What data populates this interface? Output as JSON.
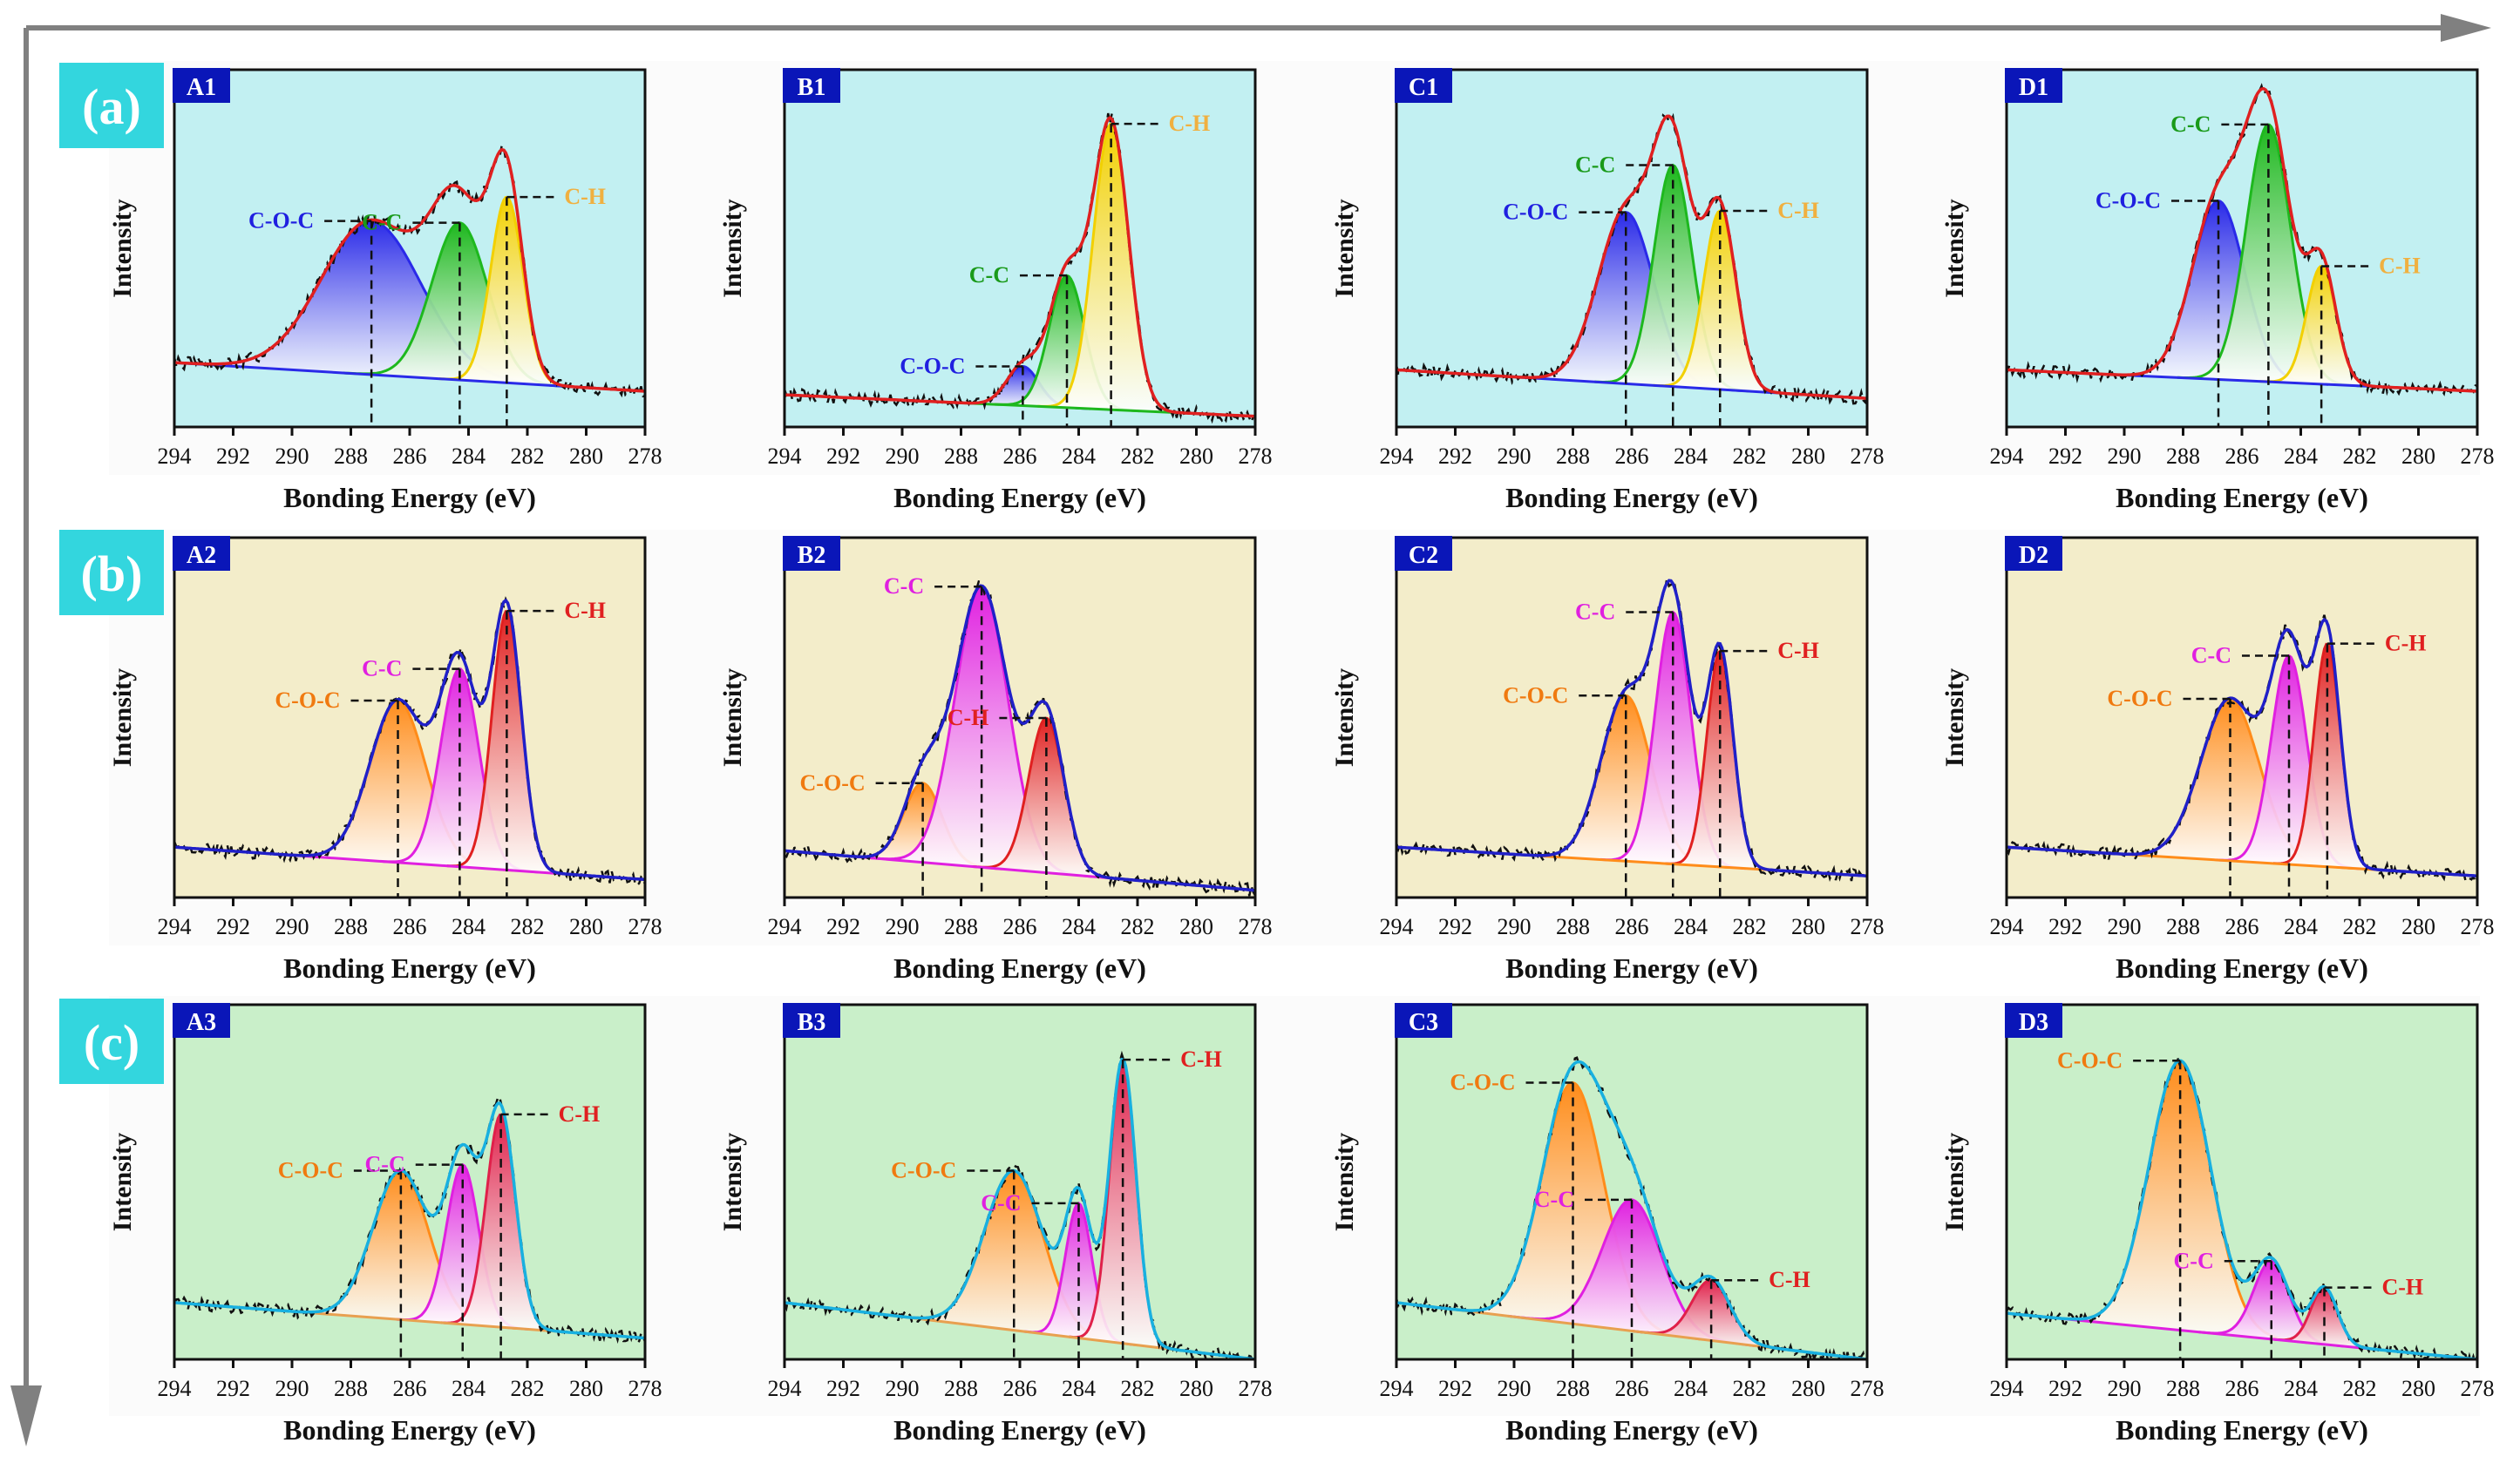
{
  "row_labels": [
    "(a)",
    "(b)",
    "(c)"
  ],
  "axis_text": {
    "xlabel": "Bonding Energy (eV)",
    "ylabel": "Intensity"
  },
  "colors": {
    "row_bg": [
      "#c2f0f2",
      "#f3edca",
      "#c9efc9"
    ],
    "row_label_bg": "#33d6de",
    "panel_label_bg": "#0a16b8",
    "arrow": "#808080"
  },
  "chart_data": [
    {
      "id": "A1",
      "type": "area",
      "xlabel": "Bonding Energy (eV)",
      "ylabel": "Intensity",
      "xlim": [
        294,
        278
      ],
      "x_ticks": [
        294,
        292,
        290,
        288,
        286,
        284,
        282,
        280,
        278
      ],
      "envelope_color": "#e02020",
      "baseline_color": "#2a2ae8",
      "baseline": [
        0.18,
        0.1
      ],
      "peaks": [
        {
          "label": "C-O-C",
          "center": 287.3,
          "height": 0.43,
          "width": 1.7,
          "color": "#2a2ae8",
          "label_color": "#2020e0"
        },
        {
          "label": "C-C",
          "center": 284.3,
          "height": 0.44,
          "width": 0.95,
          "color": "#1eb81e",
          "label_color": "#1a9a1a"
        },
        {
          "label": "C-H",
          "center": 282.7,
          "height": 0.52,
          "width": 0.55,
          "color": "#f2d000",
          "label_color": "#f0b040"
        }
      ]
    },
    {
      "id": "B1",
      "type": "area",
      "xlabel": "Bonding Energy (eV)",
      "ylabel": "Intensity",
      "xlim": [
        294,
        278
      ],
      "x_ticks": [
        294,
        292,
        290,
        288,
        286,
        284,
        282,
        280,
        278
      ],
      "envelope_color": "#e02020",
      "baseline_color": "#1eb81e",
      "baseline": [
        0.09,
        0.03
      ],
      "peaks": [
        {
          "label": "C-O-C",
          "center": 285.9,
          "height": 0.11,
          "width": 0.55,
          "color": "#2a2ae8",
          "label_color": "#2020e0"
        },
        {
          "label": "C-C",
          "center": 284.4,
          "height": 0.37,
          "width": 0.6,
          "color": "#1eb81e",
          "label_color": "#1a9a1a"
        },
        {
          "label": "C-H",
          "center": 282.9,
          "height": 0.8,
          "width": 0.6,
          "color": "#f2d000",
          "label_color": "#f0b040"
        }
      ]
    },
    {
      "id": "C1",
      "type": "area",
      "xlabel": "Bonding Energy (eV)",
      "ylabel": "Intensity",
      "xlim": [
        294,
        278
      ],
      "x_ticks": [
        294,
        292,
        290,
        288,
        286,
        284,
        282,
        280,
        278
      ],
      "envelope_color": "#e02020",
      "baseline_color": "#2a2ae8",
      "baseline": [
        0.16,
        0.08
      ],
      "peaks": [
        {
          "label": "C-O-C",
          "center": 286.2,
          "height": 0.48,
          "width": 0.95,
          "color": "#2a2ae8",
          "label_color": "#2020e0"
        },
        {
          "label": "C-C",
          "center": 284.6,
          "height": 0.62,
          "width": 0.65,
          "color": "#1eb81e",
          "label_color": "#1a9a1a"
        },
        {
          "label": "C-H",
          "center": 283.0,
          "height": 0.5,
          "width": 0.55,
          "color": "#f2d000",
          "label_color": "#f0b040"
        }
      ]
    },
    {
      "id": "D1",
      "type": "area",
      "xlabel": "Bonding Energy (eV)",
      "ylabel": "Intensity",
      "xlim": [
        294,
        278
      ],
      "x_ticks": [
        294,
        292,
        290,
        288,
        286,
        284,
        282,
        280,
        278
      ],
      "envelope_color": "#e02020",
      "baseline_color": "#2a2ae8",
      "baseline": [
        0.16,
        0.1
      ],
      "peaks": [
        {
          "label": "C-O-C",
          "center": 286.8,
          "height": 0.5,
          "width": 0.9,
          "color": "#2a2ae8",
          "label_color": "#2020e0"
        },
        {
          "label": "C-C",
          "center": 285.1,
          "height": 0.72,
          "width": 0.75,
          "color": "#1eb81e",
          "label_color": "#1a9a1a"
        },
        {
          "label": "C-H",
          "center": 283.3,
          "height": 0.33,
          "width": 0.5,
          "color": "#f2d000",
          "label_color": "#f0b040"
        }
      ]
    },
    {
      "id": "A2",
      "type": "area",
      "xlabel": "Bonding Energy (eV)",
      "ylabel": "Intensity",
      "xlim": [
        294,
        278
      ],
      "x_ticks": [
        294,
        292,
        290,
        288,
        286,
        284,
        282,
        280,
        278
      ],
      "envelope_color": "#2020c8",
      "baseline_color": "#e020e0",
      "baseline": [
        0.14,
        0.05
      ],
      "peaks": [
        {
          "label": "C-O-C",
          "center": 286.4,
          "height": 0.45,
          "width": 0.95,
          "color": "#ff8c1a",
          "label_color": "#f07a10"
        },
        {
          "label": "C-C",
          "center": 284.3,
          "height": 0.55,
          "width": 0.65,
          "color": "#e020e0",
          "label_color": "#e020e0"
        },
        {
          "label": "C-H",
          "center": 282.7,
          "height": 0.72,
          "width": 0.5,
          "color": "#e02020",
          "label_color": "#e02020"
        }
      ]
    },
    {
      "id": "B2",
      "type": "area",
      "xlabel": "Bonding Energy (eV)",
      "ylabel": "Intensity",
      "xlim": [
        294,
        278
      ],
      "x_ticks": [
        294,
        292,
        290,
        288,
        286,
        284,
        282,
        280,
        278
      ],
      "envelope_color": "#2020c8",
      "baseline_color": "#e020e0",
      "baseline": [
        0.13,
        0.02
      ],
      "peaks": [
        {
          "label": "C-O-C",
          "center": 289.3,
          "height": 0.22,
          "width": 0.65,
          "color": "#ff8c1a",
          "label_color": "#f07a10"
        },
        {
          "label": "C-C",
          "center": 287.3,
          "height": 0.78,
          "width": 0.9,
          "color": "#e020e0",
          "label_color": "#e020e0"
        },
        {
          "label": "C-H",
          "center": 285.1,
          "height": 0.43,
          "width": 0.6,
          "color": "#e02020",
          "label_color": "#e02020"
        }
      ]
    },
    {
      "id": "C2",
      "type": "area",
      "xlabel": "Bonding Energy (eV)",
      "ylabel": "Intensity",
      "xlim": [
        294,
        278
      ],
      "x_ticks": [
        294,
        292,
        290,
        288,
        286,
        284,
        282,
        280,
        278
      ],
      "envelope_color": "#2020c8",
      "baseline_color": "#ff8c1a",
      "baseline": [
        0.14,
        0.06
      ],
      "peaks": [
        {
          "label": "C-O-C",
          "center": 286.2,
          "height": 0.46,
          "width": 0.85,
          "color": "#ff8c1a",
          "label_color": "#f07a10"
        },
        {
          "label": "C-C",
          "center": 284.6,
          "height": 0.7,
          "width": 0.6,
          "color": "#e020e0",
          "label_color": "#e020e0"
        },
        {
          "label": "C-H",
          "center": 283.0,
          "height": 0.6,
          "width": 0.45,
          "color": "#e02020",
          "label_color": "#e02020"
        }
      ]
    },
    {
      "id": "D2",
      "type": "area",
      "xlabel": "Bonding Energy (eV)",
      "ylabel": "Intensity",
      "xlim": [
        294,
        278
      ],
      "x_ticks": [
        294,
        292,
        290,
        288,
        286,
        284,
        282,
        280,
        278
      ],
      "envelope_color": "#2020c8",
      "baseline_color": "#ff8c1a",
      "baseline": [
        0.14,
        0.06
      ],
      "peaks": [
        {
          "label": "C-O-C",
          "center": 286.4,
          "height": 0.45,
          "width": 1.0,
          "color": "#ff8c1a",
          "label_color": "#f07a10"
        },
        {
          "label": "C-C",
          "center": 284.4,
          "height": 0.58,
          "width": 0.6,
          "color": "#e020e0",
          "label_color": "#e020e0"
        },
        {
          "label": "C-H",
          "center": 283.1,
          "height": 0.62,
          "width": 0.45,
          "color": "#e02020",
          "label_color": "#e02020"
        }
      ]
    },
    {
      "id": "A3",
      "type": "area",
      "xlabel": "Bonding Energy (eV)",
      "ylabel": "Intensity",
      "xlim": [
        294,
        278
      ],
      "x_ticks": [
        294,
        292,
        290,
        288,
        286,
        284,
        282,
        280,
        278
      ],
      "envelope_color": "#18b0e0",
      "baseline_color": "#e8a050",
      "baseline": [
        0.16,
        0.06
      ],
      "peaks": [
        {
          "label": "C-O-C",
          "center": 286.3,
          "height": 0.42,
          "width": 0.95,
          "color": "#ff8c1a",
          "label_color": "#f07a10"
        },
        {
          "label": "C-C",
          "center": 284.2,
          "height": 0.45,
          "width": 0.55,
          "color": "#e020e0",
          "label_color": "#e020e0"
        },
        {
          "label": "C-H",
          "center": 282.9,
          "height": 0.6,
          "width": 0.5,
          "color": "#e0204a",
          "label_color": "#e02020"
        }
      ]
    },
    {
      "id": "B3",
      "type": "area",
      "xlabel": "Bonding Energy (eV)",
      "ylabel": "Intensity",
      "xlim": [
        294,
        278
      ],
      "x_ticks": [
        294,
        292,
        290,
        288,
        286,
        284,
        282,
        280,
        278
      ],
      "envelope_color": "#18b0e0",
      "baseline_color": "#e8a050",
      "baseline": [
        0.16,
        0.0
      ],
      "peaks": [
        {
          "label": "C-O-C",
          "center": 286.2,
          "height": 0.45,
          "width": 1.0,
          "color": "#ff8c1a",
          "label_color": "#f07a10"
        },
        {
          "label": "C-C",
          "center": 284.0,
          "height": 0.38,
          "width": 0.45,
          "color": "#e020e0",
          "label_color": "#e020e0"
        },
        {
          "label": "C-H",
          "center": 282.5,
          "height": 0.8,
          "width": 0.45,
          "color": "#e0204a",
          "label_color": "#e02020"
        }
      ]
    },
    {
      "id": "C3",
      "type": "area",
      "xlabel": "Bonding Energy (eV)",
      "ylabel": "Intensity",
      "xlim": [
        294,
        278
      ],
      "x_ticks": [
        294,
        292,
        290,
        288,
        286,
        284,
        282,
        280,
        278
      ],
      "envelope_color": "#18b0e0",
      "baseline_color": "#e8a050",
      "baseline": [
        0.16,
        0.0
      ],
      "peaks": [
        {
          "label": "C-O-C",
          "center": 288.0,
          "height": 0.68,
          "width": 1.05,
          "color": "#ff8c1a",
          "label_color": "#f07a10"
        },
        {
          "label": "C-C",
          "center": 286.0,
          "height": 0.37,
          "width": 1.0,
          "color": "#e020e0",
          "label_color": "#e020e0"
        },
        {
          "label": "C-H",
          "center": 283.3,
          "height": 0.17,
          "width": 0.65,
          "color": "#e0204a",
          "label_color": "#e02020"
        }
      ]
    },
    {
      "id": "D3",
      "type": "area",
      "xlabel": "Bonding Energy (eV)",
      "ylabel": "Intensity",
      "xlim": [
        294,
        278
      ],
      "x_ticks": [
        294,
        292,
        290,
        288,
        286,
        284,
        282,
        280,
        278
      ],
      "envelope_color": "#18b0e0",
      "baseline_color": "#e020e0",
      "baseline": [
        0.13,
        0.0
      ],
      "peaks": [
        {
          "label": "C-O-C",
          "center": 288.1,
          "height": 0.76,
          "width": 1.05,
          "color": "#ff8c1a",
          "label_color": "#f07a10"
        },
        {
          "label": "C-C",
          "center": 285.0,
          "height": 0.22,
          "width": 0.6,
          "color": "#e020e0",
          "label_color": "#e020e0"
        },
        {
          "label": "C-H",
          "center": 283.2,
          "height": 0.16,
          "width": 0.45,
          "color": "#e0204a",
          "label_color": "#e02020"
        }
      ]
    }
  ]
}
